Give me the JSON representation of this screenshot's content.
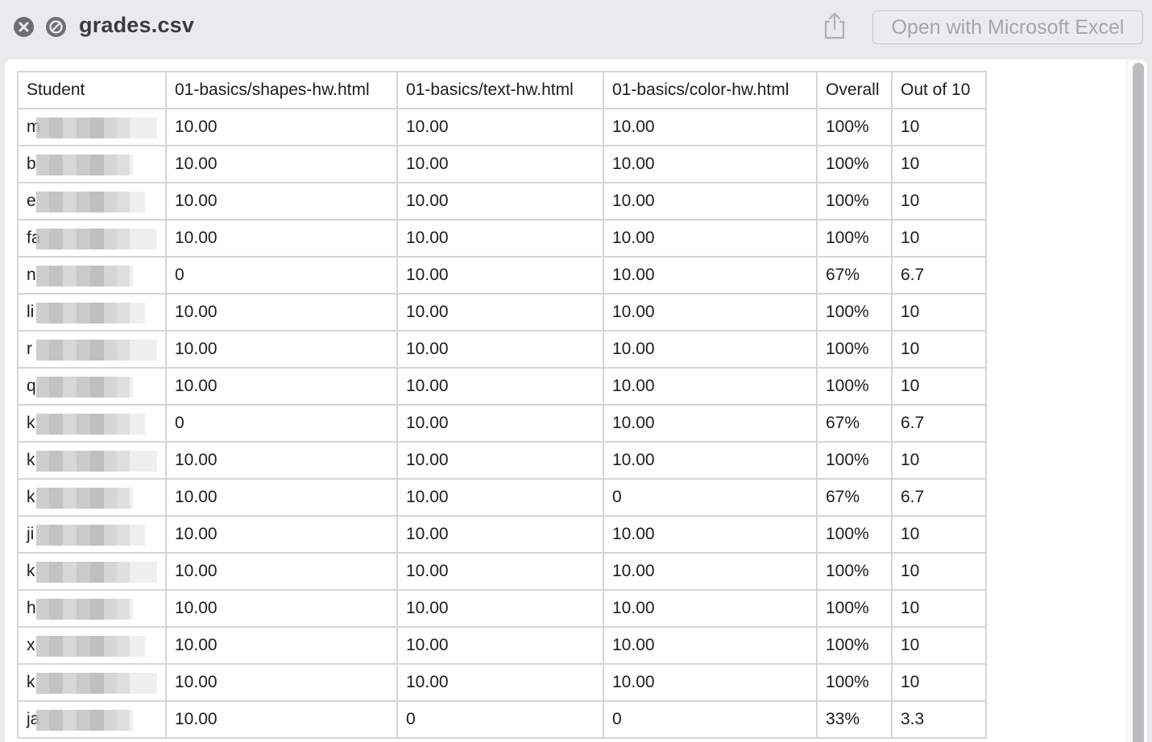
{
  "window": {
    "title": "grades.csv",
    "open_with_label": "Open with Microsoft Excel"
  },
  "icons": {
    "close": "close-icon",
    "minimize": "minimize-icon",
    "share": "share-icon"
  },
  "table": {
    "headers": [
      "Student",
      "01-basics/shapes-hw.html",
      "01-basics/text-hw.html",
      "01-basics/color-hw.html",
      "Overall",
      "Out of 10"
    ],
    "rows": [
      [
        "m",
        "10.00",
        "10.00",
        "10.00",
        "100%",
        "10"
      ],
      [
        "b",
        "10.00",
        "10.00",
        "10.00",
        "100%",
        "10"
      ],
      [
        "e",
        "10.00",
        "10.00",
        "10.00",
        "100%",
        "10"
      ],
      [
        "fa",
        "10.00",
        "10.00",
        "10.00",
        "100%",
        "10"
      ],
      [
        "n",
        "0",
        "10.00",
        "10.00",
        "67%",
        "6.7"
      ],
      [
        "li",
        "10.00",
        "10.00",
        "10.00",
        "100%",
        "10"
      ],
      [
        "r",
        "10.00",
        "10.00",
        "10.00",
        "100%",
        "10"
      ],
      [
        "q",
        "10.00",
        "10.00",
        "10.00",
        "100%",
        "10"
      ],
      [
        "k",
        "0",
        "10.00",
        "10.00",
        "67%",
        "6.7"
      ],
      [
        "k",
        "10.00",
        "10.00",
        "10.00",
        "100%",
        "10"
      ],
      [
        "k",
        "10.00",
        "10.00",
        "0",
        "67%",
        "6.7"
      ],
      [
        "ji",
        "10.00",
        "10.00",
        "10.00",
        "100%",
        "10"
      ],
      [
        "k",
        "10.00",
        "10.00",
        "10.00",
        "100%",
        "10"
      ],
      [
        "h",
        "10.00",
        "10.00",
        "10.00",
        "100%",
        "10"
      ],
      [
        "x",
        "10.00",
        "10.00",
        "10.00",
        "100%",
        "10"
      ],
      [
        "k",
        "10.00",
        "10.00",
        "10.00",
        "100%",
        "10"
      ],
      [
        "ja",
        "10.00",
        "0",
        "0",
        "33%",
        "3.3"
      ]
    ]
  }
}
